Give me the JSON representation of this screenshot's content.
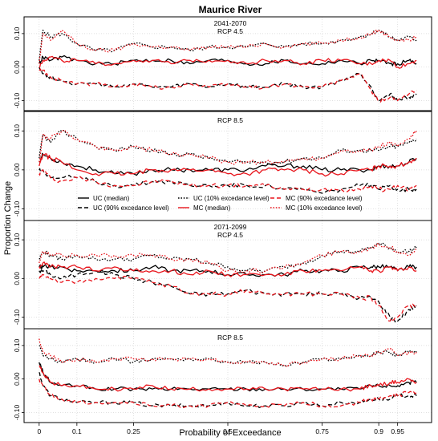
{
  "chart_data": {
    "type": "line",
    "title": "Maurice River",
    "xlabel": "Probability of Exceedance",
    "ylabel": "Proportion Change",
    "xlim": [
      0,
      1
    ],
    "ylim": [
      -0.13,
      0.15
    ],
    "xticks": [
      {
        "v": 0,
        "label": "0"
      },
      {
        "v": 0.1,
        "label": "0.1"
      },
      {
        "v": 0.25,
        "label": "0.25"
      },
      {
        "v": 0.5,
        "label": "0.5"
      },
      {
        "v": 0.75,
        "label": "0.75"
      },
      {
        "v": 0.9,
        "label": "0.9"
      },
      {
        "v": 0.95,
        "label": "0.95"
      }
    ],
    "yticks": [
      {
        "v": -0.1,
        "label": "-0.10"
      },
      {
        "v": 0,
        "label": "0.00"
      },
      {
        "v": 0.1,
        "label": "0.10"
      }
    ],
    "grid": true,
    "legend": {
      "placement": "between panel 2 and 3",
      "entries": [
        {
          "label": "UC (median)",
          "color": "#000000",
          "dash": "solid"
        },
        {
          "label": "UC (10% excedance level)",
          "color": "#000000",
          "dash": "dotted"
        },
        {
          "label": "MC (90%  excedance level)",
          "color": "#e8141b",
          "dash": "dashed"
        },
        {
          "label": "UC (90% excedance level)",
          "color": "#000000",
          "dash": "dashed"
        },
        {
          "label": "MC (median)",
          "color": "#e8141b",
          "dash": "solid"
        },
        {
          "label": "MC (10% excedance level)",
          "color": "#e8141b",
          "dash": "dotted"
        }
      ]
    },
    "colors": {
      "UC": "#000000",
      "MC": "#e8141b"
    },
    "x": [
      0,
      0.01,
      0.03,
      0.06,
      0.1,
      0.15,
      0.2,
      0.25,
      0.3,
      0.35,
      0.4,
      0.45,
      0.5,
      0.55,
      0.6,
      0.65,
      0.7,
      0.75,
      0.8,
      0.85,
      0.88,
      0.9,
      0.93,
      0.95,
      0.98,
      1.0
    ],
    "panels": [
      {
        "title_line1": "2041-2070",
        "title_line2": "RCP 4.5",
        "series": [
          {
            "name": "UC (10% excedance level)",
            "values": [
              0.02,
              0.11,
              0.09,
              0.1,
              0.07,
              0.05,
              0.05,
              0.07,
              0.06,
              0.06,
              0.05,
              0.06,
              0.06,
              0.06,
              0.07,
              0.06,
              0.07,
              0.07,
              0.08,
              0.09,
              0.1,
              0.11,
              0.09,
              0.08,
              0.09,
              0.08
            ]
          },
          {
            "name": "UC (median)",
            "values": [
              0.01,
              0.03,
              0.02,
              0.03,
              0.02,
              0.01,
              0.01,
              0.02,
              0.02,
              0.02,
              0.01,
              0.02,
              0.02,
              0.01,
              0.01,
              0.02,
              0.01,
              0.01,
              0.02,
              0.01,
              0.02,
              0.02,
              0.01,
              0.01,
              0.02,
              0.01
            ]
          },
          {
            "name": "UC (90% excedance level)",
            "values": [
              0.0,
              -0.02,
              -0.03,
              -0.04,
              -0.05,
              -0.05,
              -0.06,
              -0.05,
              -0.06,
              -0.06,
              -0.05,
              -0.06,
              -0.05,
              -0.06,
              -0.06,
              -0.05,
              -0.06,
              -0.06,
              -0.04,
              -0.02,
              -0.06,
              -0.1,
              -0.08,
              -0.1,
              -0.09,
              -0.08
            ]
          },
          {
            "name": "MC (10% excedance level)",
            "values": [
              0.01,
              0.1,
              0.08,
              0.11,
              0.07,
              0.05,
              0.05,
              0.07,
              0.06,
              0.06,
              0.05,
              0.06,
              0.06,
              0.06,
              0.07,
              0.06,
              0.07,
              0.07,
              0.08,
              0.09,
              0.1,
              0.11,
              0.09,
              0.08,
              0.08,
              0.09
            ]
          },
          {
            "name": "MC (median)",
            "values": [
              0.0,
              0.02,
              0.03,
              0.02,
              0.02,
              0.01,
              0.01,
              0.02,
              0.02,
              0.01,
              0.02,
              0.02,
              0.02,
              0.01,
              0.02,
              0.02,
              0.01,
              0.02,
              0.02,
              0.01,
              0.01,
              0.02,
              0.02,
              0.0,
              0.01,
              0.02
            ]
          },
          {
            "name": "MC (90%  excedance level)",
            "values": [
              -0.01,
              -0.01,
              -0.03,
              -0.04,
              -0.05,
              -0.05,
              -0.06,
              -0.05,
              -0.06,
              -0.06,
              -0.05,
              -0.06,
              -0.05,
              -0.06,
              -0.06,
              -0.05,
              -0.06,
              -0.06,
              -0.04,
              -0.02,
              -0.07,
              -0.1,
              -0.09,
              -0.1,
              -0.08,
              -0.07
            ]
          }
        ]
      },
      {
        "title_line1": "",
        "title_line2": "RCP 8.5",
        "series": [
          {
            "name": "UC (10% excedance level)",
            "values": [
              0.03,
              0.09,
              0.07,
              0.1,
              0.08,
              0.06,
              0.05,
              0.06,
              0.05,
              0.04,
              0.04,
              0.03,
              0.02,
              0.02,
              0.02,
              0.02,
              0.03,
              0.03,
              0.05,
              0.05,
              0.05,
              0.05,
              0.06,
              0.06,
              0.07,
              0.08
            ]
          },
          {
            "name": "UC (median)",
            "values": [
              0.02,
              0.04,
              0.03,
              0.02,
              0.01,
              0.0,
              -0.01,
              -0.01,
              0.0,
              0.0,
              0.0,
              0.0,
              0.0,
              0.0,
              0.01,
              0.01,
              0.01,
              0.0,
              0.0,
              0.0,
              0.0,
              0.01,
              0.01,
              0.01,
              0.02,
              0.03
            ]
          },
          {
            "name": "UC (90% excedance level)",
            "values": [
              0.0,
              0.0,
              -0.02,
              -0.02,
              -0.02,
              -0.03,
              -0.04,
              -0.04,
              -0.03,
              -0.03,
              -0.04,
              -0.04,
              -0.04,
              -0.04,
              -0.04,
              -0.05,
              -0.05,
              -0.06,
              -0.05,
              -0.04,
              -0.04,
              -0.05,
              -0.04,
              -0.05,
              -0.05,
              -0.05
            ]
          },
          {
            "name": "MC (10% excedance level)",
            "values": [
              0.02,
              0.09,
              0.08,
              0.1,
              0.08,
              0.06,
              0.05,
              0.06,
              0.05,
              0.04,
              0.04,
              0.03,
              0.02,
              0.02,
              0.02,
              0.02,
              0.03,
              0.03,
              0.05,
              0.05,
              0.05,
              0.06,
              0.07,
              0.06,
              0.08,
              0.1
            ]
          },
          {
            "name": "MC (median)",
            "values": [
              0.01,
              0.04,
              0.03,
              0.02,
              0.0,
              -0.01,
              -0.01,
              -0.01,
              0.0,
              0.0,
              0.0,
              0.0,
              -0.01,
              -0.01,
              0.0,
              0.0,
              0.0,
              -0.01,
              -0.01,
              0.0,
              0.0,
              0.01,
              0.01,
              0.01,
              0.02,
              0.03
            ]
          },
          {
            "name": "MC (90%  excedance level)",
            "values": [
              -0.01,
              0.0,
              -0.02,
              -0.03,
              -0.02,
              -0.03,
              -0.04,
              -0.04,
              -0.03,
              -0.03,
              -0.04,
              -0.04,
              -0.04,
              -0.04,
              -0.04,
              -0.05,
              -0.05,
              -0.05,
              -0.05,
              -0.05,
              -0.04,
              -0.05,
              -0.05,
              -0.04,
              -0.05,
              -0.04
            ]
          }
        ]
      },
      {
        "title_line1": "2071-2099",
        "title_line2": "RCP 4.5",
        "series": [
          {
            "name": "UC (10% excedance level)",
            "values": [
              0.05,
              0.07,
              0.06,
              0.05,
              0.06,
              0.05,
              0.05,
              0.05,
              0.06,
              0.05,
              0.05,
              0.04,
              0.03,
              0.02,
              0.02,
              0.03,
              0.04,
              0.06,
              0.07,
              0.07,
              0.08,
              0.09,
              0.08,
              0.07,
              0.07,
              0.08
            ]
          },
          {
            "name": "UC (median)",
            "values": [
              0.03,
              0.03,
              0.03,
              0.03,
              0.02,
              0.02,
              0.02,
              0.02,
              0.03,
              0.02,
              0.02,
              0.02,
              0.01,
              0.01,
              0.01,
              0.01,
              0.02,
              0.02,
              0.02,
              0.03,
              0.03,
              0.03,
              0.03,
              0.02,
              0.03,
              0.03
            ]
          },
          {
            "name": "UC (90% excedance level)",
            "values": [
              0.02,
              0.02,
              0.01,
              0.0,
              0.01,
              0.02,
              0.01,
              0.0,
              -0.01,
              -0.02,
              -0.04,
              -0.04,
              -0.04,
              -0.03,
              -0.04,
              -0.04,
              -0.04,
              -0.04,
              -0.04,
              -0.05,
              -0.05,
              -0.06,
              -0.1,
              -0.11,
              -0.08,
              -0.07
            ]
          },
          {
            "name": "MC (10% excedance level)",
            "values": [
              0.04,
              0.07,
              0.06,
              0.06,
              0.06,
              0.06,
              0.06,
              0.06,
              0.06,
              0.05,
              0.05,
              0.04,
              0.02,
              0.02,
              0.02,
              0.03,
              0.04,
              0.06,
              0.07,
              0.07,
              0.08,
              0.09,
              0.08,
              0.07,
              0.06,
              0.08
            ]
          },
          {
            "name": "MC (median)",
            "values": [
              0.03,
              0.04,
              0.03,
              0.03,
              0.03,
              0.02,
              0.03,
              0.02,
              0.02,
              0.02,
              0.01,
              0.02,
              0.01,
              0.01,
              0.01,
              0.01,
              0.02,
              0.02,
              0.02,
              0.03,
              0.02,
              0.02,
              0.03,
              0.02,
              0.03,
              0.02
            ]
          },
          {
            "name": "MC (90%  excedance level)",
            "values": [
              0.0,
              0.01,
              0.0,
              -0.01,
              -0.01,
              0.0,
              0.0,
              0.0,
              -0.01,
              -0.02,
              -0.04,
              -0.04,
              -0.04,
              -0.03,
              -0.04,
              -0.04,
              -0.04,
              -0.04,
              -0.04,
              -0.05,
              -0.05,
              -0.07,
              -0.11,
              -0.1,
              -0.07,
              -0.07
            ]
          }
        ]
      },
      {
        "title_line1": "",
        "title_line2": "RCP 8.5",
        "series": [
          {
            "name": "UC (10% excedance level)",
            "values": [
              0.1,
              0.07,
              0.06,
              0.05,
              0.06,
              0.05,
              0.06,
              0.05,
              0.06,
              0.06,
              0.06,
              0.06,
              0.05,
              0.05,
              0.05,
              0.04,
              0.05,
              0.06,
              0.06,
              0.07,
              0.07,
              0.08,
              0.08,
              0.07,
              0.08,
              0.08
            ]
          },
          {
            "name": "UC (median)",
            "values": [
              0.05,
              0.02,
              -0.01,
              -0.02,
              -0.02,
              -0.03,
              -0.03,
              -0.03,
              -0.03,
              -0.03,
              -0.03,
              -0.03,
              -0.03,
              -0.03,
              -0.03,
              -0.03,
              -0.03,
              -0.03,
              -0.03,
              -0.03,
              -0.02,
              -0.02,
              -0.02,
              -0.02,
              -0.01,
              -0.01
            ]
          },
          {
            "name": "UC (90% excedance level)",
            "values": [
              0.02,
              -0.02,
              -0.05,
              -0.06,
              -0.07,
              -0.07,
              -0.07,
              -0.07,
              -0.08,
              -0.08,
              -0.08,
              -0.08,
              -0.07,
              -0.08,
              -0.08,
              -0.08,
              -0.07,
              -0.08,
              -0.07,
              -0.07,
              -0.06,
              -0.06,
              -0.06,
              -0.05,
              -0.05,
              -0.05
            ]
          },
          {
            "name": "MC (10% excedance level)",
            "values": [
              0.12,
              0.08,
              0.07,
              0.05,
              0.06,
              0.05,
              0.06,
              0.06,
              0.06,
              0.06,
              0.06,
              0.06,
              0.05,
              0.05,
              0.05,
              0.04,
              0.05,
              0.06,
              0.06,
              0.07,
              0.07,
              0.08,
              0.09,
              0.07,
              0.08,
              0.08
            ]
          },
          {
            "name": "MC (median)",
            "values": [
              0.04,
              0.02,
              -0.01,
              -0.02,
              -0.02,
              -0.03,
              -0.03,
              -0.03,
              -0.02,
              -0.03,
              -0.03,
              -0.03,
              -0.03,
              -0.03,
              -0.03,
              -0.03,
              -0.03,
              -0.03,
              -0.03,
              -0.03,
              -0.02,
              -0.02,
              -0.01,
              -0.01,
              0.0,
              -0.01
            ]
          },
          {
            "name": "MC (90%  excedance level)",
            "values": [
              0.0,
              -0.02,
              -0.05,
              -0.06,
              -0.07,
              -0.07,
              -0.07,
              -0.07,
              -0.08,
              -0.08,
              -0.08,
              -0.08,
              -0.07,
              -0.08,
              -0.08,
              -0.08,
              -0.07,
              -0.08,
              -0.08,
              -0.07,
              -0.06,
              -0.06,
              -0.05,
              -0.05,
              -0.04,
              -0.04
            ]
          }
        ]
      }
    ]
  }
}
